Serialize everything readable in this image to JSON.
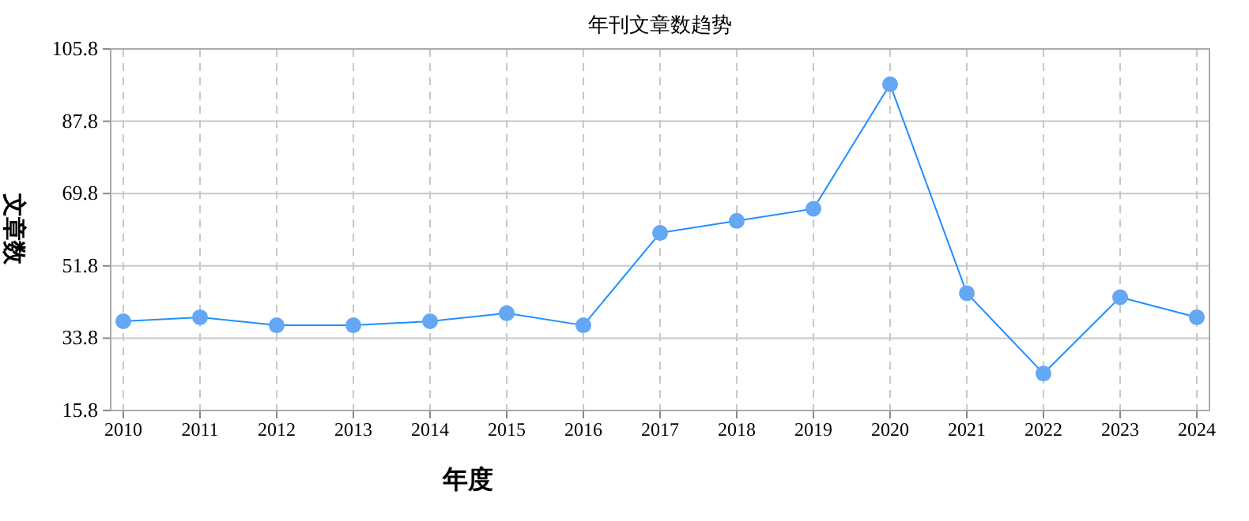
{
  "chart_data": {
    "type": "line",
    "title": "年刊文章数趋势",
    "xlabel": "年度",
    "ylabel": "文章数",
    "categories": [
      "2010",
      "2011",
      "2012",
      "2013",
      "2014",
      "2015",
      "2016",
      "2017",
      "2018",
      "2019",
      "2020",
      "2021",
      "2022",
      "2023",
      "2024"
    ],
    "series": [
      {
        "color": "#1e90ff",
        "values": [
          38,
          39,
          37,
          37,
          38,
          40,
          37,
          60,
          63,
          66,
          97,
          45,
          25,
          44,
          39
        ]
      }
    ],
    "ylim": [
      15.8,
      105.8
    ],
    "yticks": [
      15.8,
      33.8,
      51.8,
      69.8,
      87.8,
      105.8
    ],
    "grid": true,
    "marker": "circle",
    "line_style": "solid"
  }
}
